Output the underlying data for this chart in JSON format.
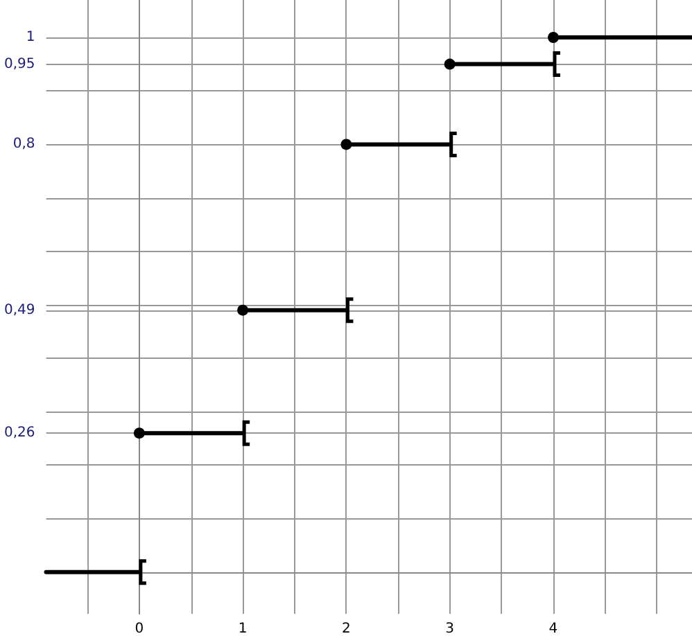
{
  "chart_data": {
    "type": "step",
    "x": [
      -0.9,
      0,
      1,
      2,
      3,
      4,
      5.34
    ],
    "series": [
      {
        "color": "#000000",
        "values": [
          0,
          0.26,
          0.49,
          0.8,
          0.95,
          1,
          1
        ]
      }
    ],
    "xlim": [
      -0.9,
      5.34
    ],
    "ylim": [
      -0.078,
      1.07
    ],
    "xticks": [
      {
        "value": -0.5,
        "label": null
      },
      0,
      {
        "value": 0.5,
        "label": null
      },
      1,
      {
        "value": 1.5,
        "label": null
      },
      2,
      {
        "value": 2.5,
        "label": null
      },
      3,
      {
        "value": 3.5,
        "label": null
      },
      4,
      {
        "value": 4.5,
        "label": null
      },
      {
        "value": 5,
        "label": null
      }
    ],
    "yticks": [
      {
        "value": 0,
        "label": null
      },
      {
        "value": 0.1,
        "label": null
      },
      {
        "value": 0.2,
        "label": null
      },
      {
        "value": 0.26,
        "label": "0,26"
      },
      {
        "value": 0.3,
        "label": null
      },
      {
        "value": 0.4,
        "label": null
      },
      {
        "value": 0.49,
        "label": "0,49"
      },
      {
        "value": 0.5,
        "label": null
      },
      {
        "value": 0.6,
        "label": null
      },
      {
        "value": 0.7,
        "label": null
      },
      {
        "value": 0.8,
        "label": "0,8"
      },
      {
        "value": 0.9,
        "label": null
      },
      {
        "value": 0.95,
        "label": "0,95"
      },
      {
        "value": 1,
        "label": "1"
      }
    ],
    "grid": true,
    "marker": "circle"
  }
}
